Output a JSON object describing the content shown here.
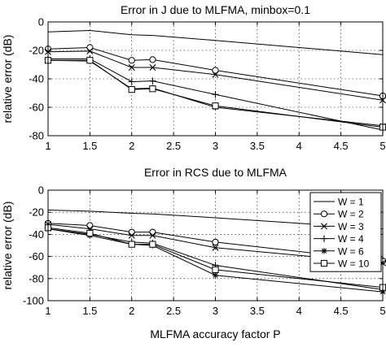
{
  "chart_data": [
    {
      "type": "line",
      "title": "Error in J due to MLFMA, minbox=0.1",
      "xlabel": "",
      "ylabel": "relative error (dB)",
      "xlim": [
        1,
        5
      ],
      "ylim": [
        -80,
        0
      ],
      "xticks": [
        1,
        1.5,
        2,
        2.5,
        3,
        3.5,
        4,
        4.5,
        5
      ],
      "xtick_labels": [
        "1",
        "1.5",
        "2",
        "2.5",
        "3",
        "3.5",
        "4",
        "4.5",
        "5"
      ],
      "yticks": [
        -80,
        -60,
        -40,
        -20,
        0
      ],
      "ytick_labels": [
        "-80",
        "-60",
        "-40",
        "-20",
        "0"
      ],
      "grid": true,
      "x": [
        1,
        1.5,
        2,
        2.25,
        3,
        5
      ],
      "series": [
        {
          "name": "W = 1",
          "marker": "none",
          "values": [
            -7,
            -6,
            -9,
            -9.5,
            -13,
            -23
          ]
        },
        {
          "name": "W = 2",
          "marker": "circle",
          "values": [
            -19,
            -18,
            -27,
            -26.5,
            -34,
            -52
          ]
        },
        {
          "name": "W = 3",
          "marker": "x",
          "values": [
            -21,
            -20.5,
            -32,
            -32,
            -37,
            -55
          ]
        },
        {
          "name": "W = 4",
          "marker": "plus",
          "values": [
            -26,
            -26,
            -42,
            -41.5,
            -51,
            -76
          ]
        },
        {
          "name": "W = 6",
          "marker": "star",
          "values": [
            -27,
            -27.5,
            -47,
            -46.5,
            -60,
            -73
          ]
        },
        {
          "name": "W = 10",
          "marker": "square",
          "values": [
            -27,
            -27,
            -47.5,
            -47,
            -59,
            -74
          ]
        }
      ]
    },
    {
      "type": "line",
      "title": "Error in RCS due to MLFMA",
      "xlabel": "MLFMA accuracy factor P",
      "ylabel": "relative error (dB)",
      "xlim": [
        1,
        5
      ],
      "ylim": [
        -100,
        0
      ],
      "xticks": [
        1,
        1.5,
        2,
        2.5,
        3,
        3.5,
        4,
        4.5,
        5
      ],
      "xtick_labels": [
        "1",
        "1.5",
        "2",
        "2.5",
        "3",
        "3.5",
        "4",
        "4.5",
        "5"
      ],
      "yticks": [
        -100,
        -80,
        -60,
        -40,
        -20,
        0
      ],
      "ytick_labels": [
        "-100",
        "-80",
        "-60",
        "-40",
        "-20",
        "0"
      ],
      "grid": true,
      "legend_position": "right",
      "x": [
        1,
        1.5,
        2,
        2.25,
        3,
        5
      ],
      "series": [
        {
          "name": "W = 1",
          "marker": "none",
          "values": [
            -18,
            -19,
            -21,
            -21.5,
            -25,
            -35
          ]
        },
        {
          "name": "W = 2",
          "marker": "circle",
          "values": [
            -30,
            -32,
            -38,
            -38,
            -47,
            -64
          ]
        },
        {
          "name": "W = 3",
          "marker": "x",
          "values": [
            -31,
            -35,
            -41,
            -41,
            -52,
            -66
          ]
        },
        {
          "name": "W = 4",
          "marker": "plus",
          "values": [
            -35,
            -40,
            -47,
            -48,
            -68,
            -90
          ]
        },
        {
          "name": "W = 6",
          "marker": "star",
          "values": [
            -35,
            -41,
            -49,
            -50,
            -77,
            -92
          ]
        },
        {
          "name": "W = 10",
          "marker": "square",
          "values": [
            -34,
            -39,
            -49,
            -49,
            -72,
            -88
          ]
        }
      ]
    }
  ]
}
